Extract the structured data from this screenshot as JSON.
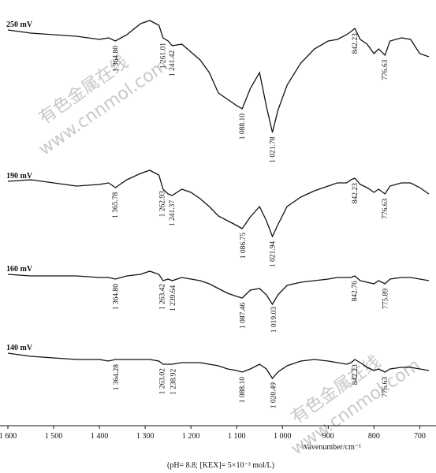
{
  "chart_data": {
    "type": "line",
    "x_label": "Wavenumber/cm⁻¹",
    "caption": "(pH= 8.8; [KEX]= 5×10⁻³ mol/L)",
    "watermarks": [
      "有色金属在线",
      "www.cnnmol.com"
    ],
    "xlim": [
      1600,
      680
    ],
    "ylim": [
      0,
      530
    ],
    "xticks": [
      {
        "value": 1600,
        "label": "1 600"
      },
      {
        "value": 1500,
        "label": "1 500"
      },
      {
        "value": 1400,
        "label": "1 400"
      },
      {
        "value": 1300,
        "label": "1 300"
      },
      {
        "value": 1200,
        "label": "1 200"
      },
      {
        "value": 1100,
        "label": "1 100"
      },
      {
        "value": 1000,
        "label": "1 000"
      },
      900,
      800,
      700
    ],
    "x": [
      1600,
      1550,
      1500,
      1450,
      1400,
      1380,
      1365,
      1340,
      1310,
      1290,
      1270,
      1261,
      1250,
      1241,
      1220,
      1200,
      1180,
      1160,
      1140,
      1120,
      1100,
      1088,
      1070,
      1050,
      1035,
      1022,
      1010,
      990,
      960,
      930,
      900,
      880,
      860,
      850,
      842,
      830,
      815,
      800,
      790,
      776,
      765,
      740,
      720,
      700,
      680
    ],
    "series": [
      {
        "name": "250 mV",
        "color": "#111111",
        "values": [
          502,
          498,
          496,
          494,
          490,
          492,
          488,
          496,
          510,
          514,
          508,
          492,
          488,
          482,
          484,
          474,
          464,
          448,
          422,
          414,
          406,
          402,
          428,
          448,
          405,
          372,
          400,
          432,
          460,
          478,
          488,
          490,
          496,
          500,
          504,
          490,
          484,
          472,
          478,
          470,
          488,
          492,
          490,
          472,
          468
        ],
        "peaks": [
          {
            "value": 1364.8,
            "label": "1 364.80"
          },
          {
            "value": 1261.01,
            "label": "1 261.01"
          },
          {
            "value": 1241.42,
            "label": "1 241.42"
          },
          {
            "value": 1088.1,
            "label": "1 088.10"
          },
          {
            "value": 1021.78,
            "label": "1 021.78"
          },
          {
            "value": 842.23,
            "label": "842.23"
          },
          {
            "value": 776.63,
            "label": "776.63"
          }
        ]
      },
      {
        "name": "190 mV",
        "color": "#111111",
        "values": [
          310,
          312,
          308,
          304,
          306,
          308,
          302,
          312,
          320,
          324,
          318,
          300,
          294,
          292,
          300,
          296,
          288,
          278,
          266,
          260,
          254,
          250,
          265,
          278,
          260,
          240,
          255,
          278,
          290,
          298,
          304,
          308,
          308,
          312,
          314,
          306,
          302,
          296,
          300,
          294,
          304,
          308,
          308,
          302,
          294
        ],
        "peaks": [
          {
            "value": 1365.78,
            "label": "1 365.78"
          },
          {
            "value": 1262.93,
            "label": "1 262.93"
          },
          {
            "value": 1241.37,
            "label": "1 241.37"
          },
          {
            "value": 1086.75,
            "label": "1 086.75"
          },
          {
            "value": 1021.94,
            "label": "1 021.94"
          },
          {
            "value": 842.23,
            "label": "842.23"
          },
          {
            "value": 776.63,
            "label": "776.63"
          }
        ]
      },
      {
        "name": "160 mV",
        "color": "#111111",
        "values": [
          192,
          190,
          190,
          190,
          188,
          188,
          186,
          190,
          192,
          196,
          192,
          184,
          186,
          184,
          188,
          186,
          184,
          180,
          174,
          168,
          164,
          162,
          172,
          174,
          166,
          154,
          166,
          178,
          182,
          184,
          186,
          188,
          188,
          188,
          190,
          184,
          182,
          180,
          184,
          180,
          186,
          188,
          188,
          186,
          184
        ],
        "peaks": [
          {
            "value": 1364.8,
            "label": "1 364.80"
          },
          {
            "value": 1263.42,
            "label": "1 263.42"
          },
          {
            "value": 1239.64,
            "label": "1 239.64"
          },
          {
            "value": 1087.46,
            "label": "1 087.46"
          },
          {
            "value": 1019.03,
            "label": "1 019.03"
          },
          {
            "value": 842.76,
            "label": "842.76"
          },
          {
            "value": 775.89,
            "label": "775.89"
          }
        ]
      },
      {
        "name": "140 mV",
        "color": "#111111",
        "values": [
          92,
          88,
          86,
          84,
          84,
          82,
          84,
          84,
          84,
          84,
          82,
          78,
          78,
          78,
          80,
          80,
          80,
          78,
          76,
          72,
          70,
          68,
          72,
          78,
          72,
          60,
          68,
          76,
          82,
          84,
          82,
          80,
          78,
          80,
          84,
          80,
          74,
          70,
          72,
          68,
          72,
          74,
          74,
          72,
          70
        ],
        "peaks": [
          {
            "value": 1364.28,
            "label": "1 364.28"
          },
          {
            "value": 1263.02,
            "label": "1 263.02"
          },
          {
            "value": 1238.92,
            "label": "1 238.92"
          },
          {
            "value": 1088.1,
            "label": "1 088.10"
          },
          {
            "value": 1020.49,
            "label": "1 020.49"
          },
          {
            "value": 842.23,
            "label": "842.23"
          },
          {
            "value": 776.63,
            "label": "776.63"
          }
        ]
      }
    ]
  }
}
